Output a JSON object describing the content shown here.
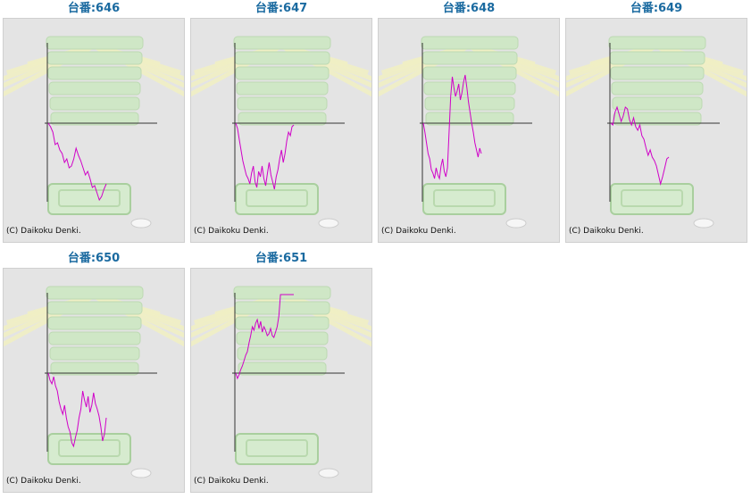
{
  "colors": {
    "line": "#d000c8",
    "axis": "#333333",
    "title": "#1a6aa0",
    "panel": "#e4e4e4"
  },
  "copyright": "(C) Daikoku Denki.",
  "chart_data": [
    {
      "type": "line",
      "title": "台番:646",
      "values": [
        0,
        -4,
        -10,
        -24,
        -22,
        -30,
        -34,
        -44,
        -40,
        -50,
        -48,
        -40,
        -28,
        -36,
        -42,
        -50,
        -58,
        -54,
        -62,
        -72,
        -70,
        -78,
        -86,
        -82,
        -74,
        -68
      ]
    },
    {
      "type": "line",
      "title": "台番:647",
      "values": [
        0,
        -6,
        -18,
        -30,
        -42,
        -50,
        -58,
        -62,
        -68,
        -56,
        -48,
        -66,
        -72,
        -54,
        -60,
        -48,
        -62,
        -70,
        -56,
        -44,
        -58,
        -66,
        -74,
        -60,
        -52,
        -40,
        -30,
        -44,
        -34,
        -20,
        -10,
        -14,
        -4,
        -2
      ]
    },
    {
      "type": "line",
      "title": "台番:648",
      "values": [
        0,
        -10,
        -22,
        -34,
        -40,
        -52,
        -56,
        -62,
        -50,
        -58,
        -62,
        -48,
        -40,
        -54,
        -60,
        -50,
        -10,
        30,
        52,
        40,
        30,
        36,
        44,
        26,
        34,
        46,
        54,
        40,
        24,
        12,
        0,
        -10,
        -22,
        -30,
        -38,
        -28,
        -34
      ]
    },
    {
      "type": "line",
      "title": "台番:649",
      "values": [
        0,
        -2,
        12,
        18,
        10,
        2,
        8,
        18,
        16,
        4,
        -2,
        6,
        -4,
        -8,
        -2,
        -14,
        -18,
        -28,
        -36,
        -30,
        -38,
        -42,
        -48,
        -58,
        -68,
        -60,
        -50,
        -40,
        -38
      ]
    },
    {
      "type": "line",
      "title": "台番:650",
      "values": [
        0,
        -8,
        -12,
        -4,
        -14,
        -20,
        -32,
        -40,
        -46,
        -36,
        -50,
        -60,
        -66,
        -78,
        -82,
        -72,
        -64,
        -50,
        -40,
        -20,
        -30,
        -38,
        -26,
        -44,
        -36,
        -22,
        -34,
        -40,
        -48,
        -60,
        -76,
        -68,
        -50
      ]
    },
    {
      "type": "line",
      "title": "台番:651",
      "values": [
        0,
        -6,
        -2,
        4,
        8,
        14,
        20,
        24,
        34,
        42,
        52,
        48,
        56,
        60,
        50,
        58,
        46,
        52,
        48,
        42,
        44,
        50,
        42,
        40,
        46,
        52,
        64,
        90,
        88,
        102,
        100,
        92,
        96,
        88,
        94,
        98
      ]
    }
  ]
}
